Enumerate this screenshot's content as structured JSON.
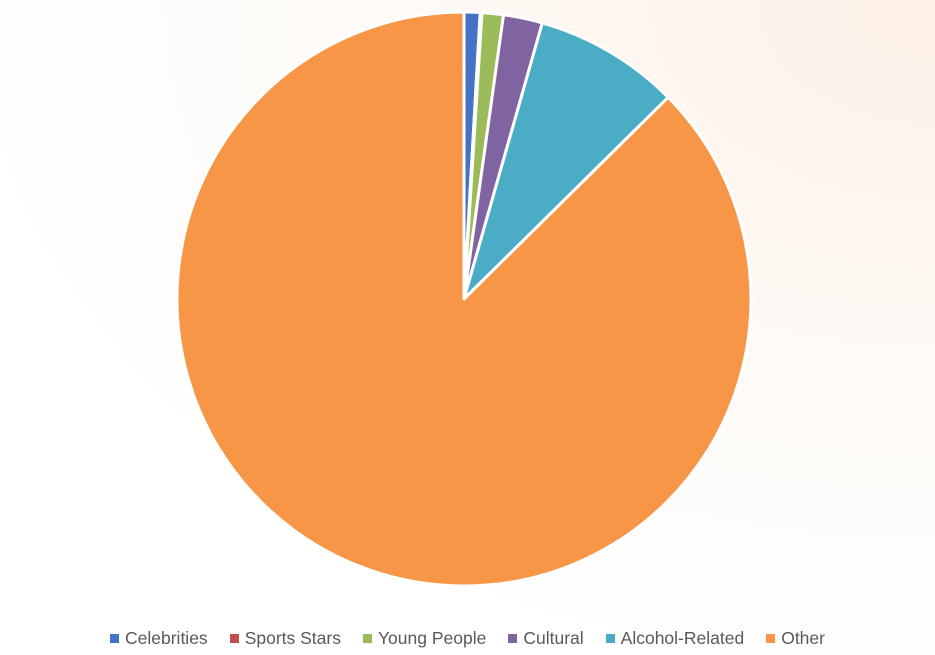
{
  "chart_data": {
    "type": "pie",
    "title": "",
    "categories": [
      "Celebrities",
      "Sports Stars",
      "Young People",
      "Cultural",
      "Alcohol-Related",
      "Other"
    ],
    "values": [
      0.9,
      0.1,
      1.2,
      2.2,
      8.2,
      87.4
    ],
    "colors": [
      "#4472c4",
      "#c0504d",
      "#9bbb59",
      "#8064a2",
      "#4bacc6",
      "#f79646"
    ],
    "legend_position": "bottom",
    "start_angle": "top",
    "direction": "clockwise"
  }
}
